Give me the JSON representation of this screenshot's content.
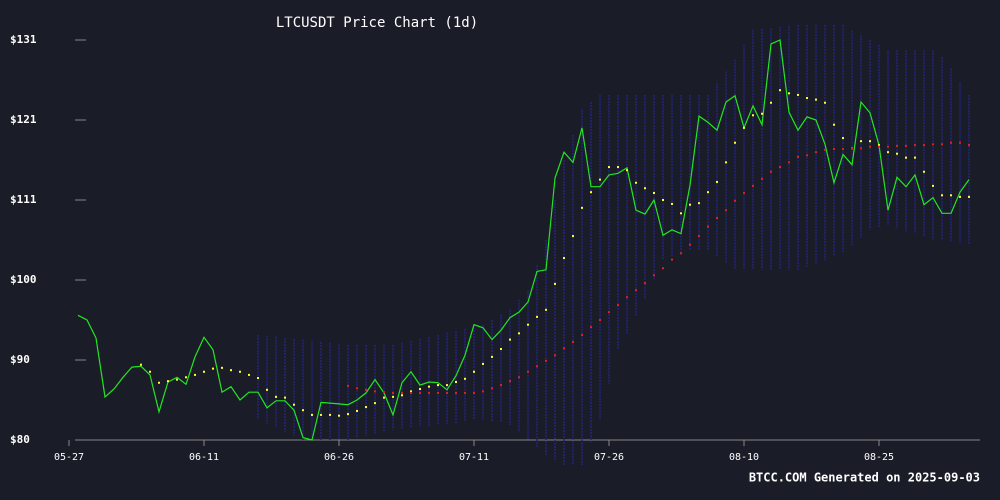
{
  "chart_data": {
    "type": "line",
    "title": "LTCUSDT Price Chart (1d)",
    "footer": "BTCC.COM Generated on 2025-09-03",
    "categories": [
      "05-27",
      null,
      null,
      null,
      null,
      null,
      null,
      null,
      null,
      null,
      null,
      null,
      null,
      null,
      null,
      "06-11",
      null,
      null,
      null,
      null,
      null,
      null,
      null,
      null,
      null,
      null,
      null,
      null,
      null,
      null,
      "06-26",
      null,
      null,
      null,
      null,
      null,
      null,
      null,
      null,
      null,
      null,
      null,
      null,
      null,
      null,
      "07-11",
      null,
      null,
      null,
      null,
      null,
      null,
      null,
      null,
      null,
      null,
      null,
      null,
      null,
      null,
      "07-26",
      null,
      null,
      null,
      null,
      null,
      null,
      null,
      null,
      null,
      null,
      null,
      null,
      null,
      null,
      "08-10",
      null,
      null,
      null,
      null,
      null,
      null,
      null,
      null,
      null,
      null,
      null,
      null,
      null,
      null,
      "08-25",
      null,
      null,
      null,
      null,
      null,
      null,
      null,
      null,
      null,
      null
    ],
    "ylim": [
      80,
      131
    ],
    "yticks": [
      {
        "value": 80,
        "label": "$80"
      },
      {
        "value": 90.2,
        "label": "$90"
      },
      {
        "value": 100.4,
        "label": "$100"
      },
      {
        "value": 110.6,
        "label": "$111"
      },
      {
        "value": 120.8,
        "label": "$121"
      },
      {
        "value": 131,
        "label": "$131"
      }
    ],
    "band": {
      "color": "#23237a",
      "upper": [
        null,
        null,
        null,
        null,
        null,
        null,
        null,
        null,
        null,
        null,
        null,
        null,
        null,
        null,
        null,
        null,
        null,
        null,
        null,
        null,
        null,
        93.4,
        93.3,
        93.2,
        93.0,
        92.9,
        92.8,
        92.7,
        92.5,
        92.4,
        92.2,
        92.1,
        92.1,
        92.1,
        92.1,
        92.1,
        92.1,
        92.4,
        92.6,
        92.9,
        93.1,
        93.4,
        93.7,
        93.9,
        94.2,
        94.4,
        94.7,
        95.3,
        96.0,
        96.6,
        97.9,
        99.1,
        102.3,
        105.5,
        110.6,
        115.7,
        118.9,
        122.1,
        123.1,
        124.0,
        124.0,
        124.0,
        124.0,
        124.0,
        124.0,
        124.0,
        124.0,
        124.0,
        124.0,
        124.0,
        124.0,
        124.0,
        125.5,
        127.0,
        128.5,
        130.4,
        132.3,
        132.4,
        132.5,
        132.7,
        132.8,
        132.9,
        132.9,
        132.9,
        132.9,
        132.9,
        132.9,
        132.2,
        131.6,
        131.0,
        130.4,
        129.7,
        129.7,
        129.7,
        129.7,
        129.7,
        129.7,
        128.8,
        127.4,
        125.6,
        124.0
      ],
      "lower": [
        null,
        null,
        null,
        null,
        null,
        null,
        null,
        null,
        null,
        null,
        null,
        null,
        null,
        null,
        null,
        null,
        null,
        null,
        null,
        null,
        null,
        82.6,
        82.1,
        81.6,
        81.0,
        80.5,
        80.0,
        80.0,
        80.0,
        80.0,
        80.0,
        80.0,
        80.3,
        80.5,
        80.8,
        81.0,
        81.3,
        81.4,
        81.5,
        81.7,
        81.8,
        81.9,
        82.0,
        82.2,
        82.3,
        82.5,
        82.6,
        82.4,
        82.2,
        81.9,
        81.0,
        80.0,
        79.1,
        78.1,
        77.5,
        76.8,
        76.8,
        76.8,
        79.7,
        82.6,
        87.1,
        91.5,
        93.6,
        95.8,
        97.9,
        100.5,
        103.0,
        103.4,
        103.8,
        104.2,
        104.2,
        104.2,
        103.4,
        102.5,
        101.7,
        101.7,
        101.7,
        101.7,
        101.7,
        101.7,
        101.7,
        101.7,
        102.1,
        102.5,
        102.9,
        103.4,
        103.8,
        104.8,
        105.8,
        106.8,
        107.1,
        107.4,
        107.0,
        106.6,
        106.3,
        105.9,
        105.5,
        105.4,
        105.2,
        105.1,
        104.9
      ]
    },
    "series": [
      {
        "kind": "line",
        "color": "#22e622",
        "values": [
          null,
          95.9,
          95.3,
          93,
          85.5,
          86.5,
          88,
          89.3,
          89.4,
          88.3,
          83.6,
          87.4,
          88,
          87.1,
          90.6,
          93.1,
          91.5,
          86.1,
          86.8,
          85.1,
          86.1,
          86.1,
          84.1,
          85,
          85,
          83.8,
          80.3,
          80,
          84.8,
          84.7,
          84.6,
          84.5,
          85.1,
          86,
          87.7,
          86,
          83.2,
          87.3,
          88.7,
          87,
          87.4,
          87.3,
          86.4,
          88.2,
          90.8,
          94.7,
          94.3,
          92.8,
          94,
          95.6,
          96.3,
          97.6,
          101.5,
          101.7,
          113.4,
          116.7,
          115.4,
          119.8,
          112.3,
          112.3,
          113.8,
          114,
          114.7,
          109.3,
          108.8,
          110.6,
          106.1,
          106.8,
          106.3,
          112.5,
          121.3,
          120.5,
          119.5,
          123.1,
          123.9,
          119.8,
          122.6,
          120.2,
          130.5,
          131,
          121.8,
          119.5,
          121.2,
          120.8,
          117.7,
          112.8,
          116.4,
          115.1,
          123.1,
          121.7,
          117.6,
          109.3,
          113.5,
          112.3,
          113.8,
          110,
          110.9,
          108.9,
          108.9,
          111.6,
          113.2
        ]
      },
      {
        "kind": "dots",
        "color": "#ffff33",
        "values": [
          null,
          null,
          null,
          null,
          null,
          null,
          null,
          null,
          89.6,
          88.7,
          87.3,
          87.5,
          87.7,
          88.0,
          88.3,
          88.7,
          89.1,
          89.2,
          88.9,
          88.7,
          88.3,
          87.9,
          86.4,
          85.5,
          85.4,
          84.5,
          83.8,
          83.2,
          83.2,
          83.2,
          83.1,
          83.3,
          83.7,
          84.2,
          84.7,
          85.4,
          85.5,
          85.7,
          86.2,
          86.5,
          86.8,
          87.0,
          87.0,
          87.4,
          87.8,
          88.7,
          89.7,
          90.6,
          91.6,
          92.8,
          93.6,
          94.7,
          95.7,
          96.6,
          99.9,
          103.2,
          106.0,
          109.6,
          111.6,
          113.2,
          114.8,
          114.8,
          114.4,
          112.8,
          112.1,
          111.5,
          110.6,
          110.1,
          108.9,
          110.0,
          110.2,
          111.6,
          112.9,
          115.4,
          117.9,
          119.8,
          121.4,
          121.6,
          123.0,
          124.6,
          124.2,
          124.0,
          123.6,
          123.4,
          123.0,
          120.2,
          118.5,
          117.2,
          118.1,
          118.1,
          117.6,
          116.7,
          116.5,
          116.0,
          116.0,
          114.2,
          112.4,
          111.2,
          111.2,
          111.0,
          111.0
        ]
      },
      {
        "kind": "dots",
        "color": "#e02020",
        "values": [
          null,
          null,
          null,
          null,
          null,
          null,
          null,
          null,
          null,
          null,
          null,
          null,
          null,
          null,
          null,
          null,
          null,
          null,
          null,
          null,
          null,
          null,
          null,
          null,
          null,
          null,
          null,
          null,
          null,
          null,
          null,
          86.9,
          86.6,
          86.4,
          86.2,
          86.1,
          86.0,
          86.0,
          86.0,
          86.0,
          86.0,
          86.0,
          86.0,
          86.0,
          86.0,
          86.0,
          86.2,
          86.6,
          87.0,
          87.5,
          88.0,
          88.7,
          89.4,
          90.1,
          90.8,
          91.7,
          92.5,
          93.4,
          94.4,
          95.3,
          96.3,
          97.2,
          98.2,
          99.1,
          100.0,
          101.0,
          101.9,
          103.0,
          103.8,
          104.9,
          106.0,
          107.2,
          108.3,
          109.3,
          110.5,
          111.5,
          112.4,
          113.3,
          114.2,
          114.8,
          115.4,
          116.1,
          116.3,
          116.7,
          117.0,
          117.1,
          117.1,
          117.2,
          117.2,
          117.4,
          117.4,
          117.4,
          117.5,
          117.5,
          117.6,
          117.6,
          117.7,
          117.7,
          117.9,
          117.9,
          117.6
        ]
      }
    ]
  }
}
